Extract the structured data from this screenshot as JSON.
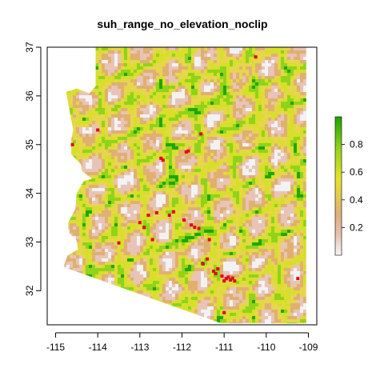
{
  "title": "suh_range_no_elevation_noclip",
  "chart_data": {
    "type": "heatmap",
    "title": "suh_range_no_elevation_noclip",
    "xlabel": "",
    "ylabel": "",
    "xlim": [
      -115.2,
      -108.8
    ],
    "ylim": [
      31.3,
      37.0
    ],
    "x_ticks": [
      "-115",
      "-114",
      "-113",
      "-112",
      "-111",
      "-110",
      "-109"
    ],
    "x_tick_values": [
      -115,
      -114,
      -113,
      -112,
      -111,
      -110,
      -109
    ],
    "y_ticks": [
      "32",
      "33",
      "34",
      "35",
      "36",
      "37"
    ],
    "y_tick_values": [
      32,
      33,
      34,
      35,
      36,
      37
    ],
    "legend": {
      "placement": "right",
      "range": [
        0,
        1
      ],
      "ticks": [
        "0.2",
        "0.4",
        "0.6",
        "0.8"
      ],
      "tick_values": [
        0.2,
        0.4,
        0.6,
        0.8
      ],
      "colors": [
        "#f2f2f2",
        "#e8c4b8",
        "#e0b070",
        "#e6d64c",
        "#d7df2a",
        "#8fd31a",
        "#1fa700"
      ]
    },
    "occurrence_color": "#e2001a",
    "occurrence_points": [
      [
        -114.6,
        35.0
      ],
      [
        -114.0,
        35.3
      ],
      [
        -113.5,
        32.98
      ],
      [
        -113.0,
        33.4
      ],
      [
        -112.9,
        33.3
      ],
      [
        -112.8,
        33.55
      ],
      [
        -112.7,
        33.05
      ],
      [
        -112.5,
        34.72
      ],
      [
        -112.45,
        34.68
      ],
      [
        -112.3,
        33.55
      ],
      [
        -112.2,
        33.62
      ],
      [
        -111.9,
        34.85
      ],
      [
        -111.85,
        34.87
      ],
      [
        -111.78,
        33.35
      ],
      [
        -111.7,
        33.3
      ],
      [
        -111.6,
        33.28
      ],
      [
        -111.55,
        35.22
      ],
      [
        -111.35,
        33.05
      ],
      [
        -111.25,
        32.4
      ],
      [
        -111.2,
        32.35
      ],
      [
        -111.15,
        32.45
      ],
      [
        -111.05,
        32.3
      ],
      [
        -111.0,
        32.2
      ],
      [
        -110.95,
        32.25
      ],
      [
        -110.9,
        32.28
      ],
      [
        -110.85,
        32.22
      ],
      [
        -110.8,
        32.26
      ],
      [
        -110.75,
        32.2
      ],
      [
        -111.5,
        32.55
      ],
      [
        -111.0,
        31.55
      ],
      [
        -110.25,
        36.8
      ],
      [
        -109.25,
        32.25
      ],
      [
        -112.6,
        33.6
      ],
      [
        -111.95,
        33.45
      ],
      [
        -111.4,
        32.65
      ]
    ]
  }
}
